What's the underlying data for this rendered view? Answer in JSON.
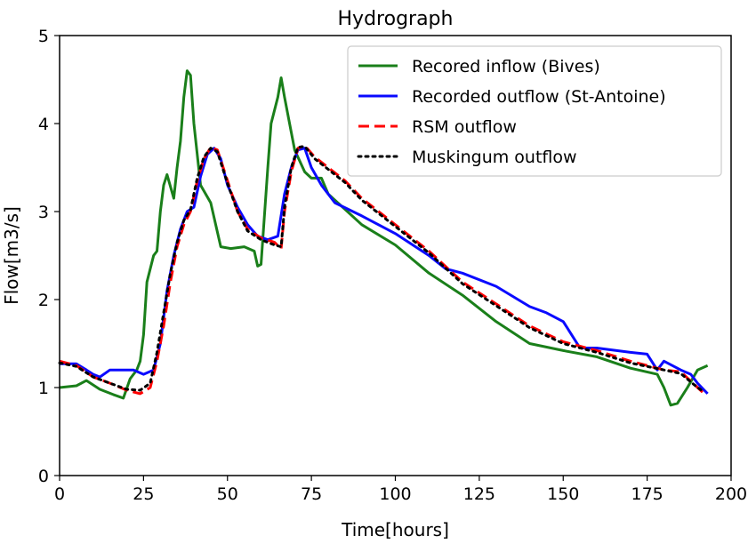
{
  "chart_data": {
    "type": "line",
    "title": "Hydrograph",
    "xlabel": "Time[hours]",
    "ylabel": "Flow[m3/s]",
    "xlim": [
      0,
      200
    ],
    "ylim": [
      0,
      5
    ],
    "xticks": [
      0,
      25,
      50,
      75,
      100,
      125,
      150,
      175,
      200
    ],
    "yticks": [
      0,
      1,
      2,
      3,
      4,
      5
    ],
    "grid": false,
    "legend_position": "top-right",
    "series": [
      {
        "name": "Recored inflow (Bives)",
        "color": "#1a7f1a",
        "style": "solid",
        "points": [
          [
            0,
            1.0
          ],
          [
            5,
            1.02
          ],
          [
            8,
            1.08
          ],
          [
            12,
            0.98
          ],
          [
            16,
            0.92
          ],
          [
            19,
            0.88
          ],
          [
            21,
            1.1
          ],
          [
            23,
            1.2
          ],
          [
            24,
            1.3
          ],
          [
            25,
            1.6
          ],
          [
            26,
            2.2
          ],
          [
            28,
            2.5
          ],
          [
            29,
            2.55
          ],
          [
            30,
            3.0
          ],
          [
            31,
            3.3
          ],
          [
            32,
            3.42
          ],
          [
            34,
            3.15
          ],
          [
            35,
            3.5
          ],
          [
            36,
            3.8
          ],
          [
            37,
            4.3
          ],
          [
            38,
            4.6
          ],
          [
            39,
            4.55
          ],
          [
            40,
            4.0
          ],
          [
            42,
            3.3
          ],
          [
            45,
            3.1
          ],
          [
            48,
            2.6
          ],
          [
            51,
            2.58
          ],
          [
            55,
            2.6
          ],
          [
            58,
            2.55
          ],
          [
            59,
            2.38
          ],
          [
            60,
            2.4
          ],
          [
            62,
            3.5
          ],
          [
            63,
            4.0
          ],
          [
            65,
            4.3
          ],
          [
            66,
            4.52
          ],
          [
            67,
            4.3
          ],
          [
            70,
            3.7
          ],
          [
            73,
            3.45
          ],
          [
            75,
            3.38
          ],
          [
            78,
            3.38
          ],
          [
            80,
            3.2
          ],
          [
            90,
            2.85
          ],
          [
            100,
            2.62
          ],
          [
            110,
            2.3
          ],
          [
            120,
            2.05
          ],
          [
            125,
            1.9
          ],
          [
            130,
            1.75
          ],
          [
            140,
            1.5
          ],
          [
            150,
            1.42
          ],
          [
            160,
            1.35
          ],
          [
            170,
            1.22
          ],
          [
            178,
            1.15
          ],
          [
            180,
            1.0
          ],
          [
            182,
            0.8
          ],
          [
            184,
            0.82
          ],
          [
            187,
            1.0
          ],
          [
            190,
            1.2
          ],
          [
            193,
            1.25
          ]
        ]
      },
      {
        "name": "Recorded outflow (St-Antoine)",
        "color": "#0a0aff",
        "style": "solid",
        "points": [
          [
            0,
            1.27
          ],
          [
            5,
            1.27
          ],
          [
            8,
            1.2
          ],
          [
            10,
            1.15
          ],
          [
            12,
            1.12
          ],
          [
            15,
            1.2
          ],
          [
            19,
            1.2
          ],
          [
            22,
            1.2
          ],
          [
            25,
            1.15
          ],
          [
            28,
            1.2
          ],
          [
            30,
            1.5
          ],
          [
            32,
            2.1
          ],
          [
            34,
            2.5
          ],
          [
            36,
            2.8
          ],
          [
            38,
            3.0
          ],
          [
            40,
            3.05
          ],
          [
            42,
            3.4
          ],
          [
            44,
            3.65
          ],
          [
            46,
            3.72
          ],
          [
            48,
            3.6
          ],
          [
            50,
            3.3
          ],
          [
            53,
            3.05
          ],
          [
            56,
            2.85
          ],
          [
            59,
            2.72
          ],
          [
            62,
            2.68
          ],
          [
            65,
            2.72
          ],
          [
            67,
            3.2
          ],
          [
            69,
            3.5
          ],
          [
            71,
            3.7
          ],
          [
            73,
            3.72
          ],
          [
            75,
            3.5
          ],
          [
            78,
            3.3
          ],
          [
            82,
            3.1
          ],
          [
            90,
            2.95
          ],
          [
            100,
            2.75
          ],
          [
            110,
            2.5
          ],
          [
            115,
            2.35
          ],
          [
            120,
            2.3
          ],
          [
            130,
            2.15
          ],
          [
            140,
            1.92
          ],
          [
            145,
            1.85
          ],
          [
            150,
            1.75
          ],
          [
            155,
            1.45
          ],
          [
            160,
            1.45
          ],
          [
            170,
            1.4
          ],
          [
            175,
            1.38
          ],
          [
            178,
            1.2
          ],
          [
            180,
            1.3
          ],
          [
            185,
            1.2
          ],
          [
            188,
            1.15
          ],
          [
            190,
            1.05
          ],
          [
            193,
            0.93
          ]
        ]
      },
      {
        "name": "RSM outflow",
        "color": "#ff0000",
        "style": "dashed",
        "points": [
          [
            0,
            1.3
          ],
          [
            5,
            1.25
          ],
          [
            10,
            1.12
          ],
          [
            15,
            1.05
          ],
          [
            20,
            0.97
          ],
          [
            24,
            0.93
          ],
          [
            27,
            1.0
          ],
          [
            29,
            1.3
          ],
          [
            31,
            1.7
          ],
          [
            33,
            2.2
          ],
          [
            35,
            2.6
          ],
          [
            37,
            2.85
          ],
          [
            39,
            3.0
          ],
          [
            41,
            3.35
          ],
          [
            43,
            3.6
          ],
          [
            45,
            3.73
          ],
          [
            47,
            3.7
          ],
          [
            50,
            3.35
          ],
          [
            53,
            3.0
          ],
          [
            56,
            2.8
          ],
          [
            60,
            2.7
          ],
          [
            64,
            2.65
          ],
          [
            66,
            2.58
          ],
          [
            67,
            3.0
          ],
          [
            69,
            3.45
          ],
          [
            71,
            3.72
          ],
          [
            73,
            3.75
          ],
          [
            76,
            3.62
          ],
          [
            80,
            3.5
          ],
          [
            85,
            3.35
          ],
          [
            90,
            3.15
          ],
          [
            100,
            2.85
          ],
          [
            110,
            2.55
          ],
          [
            120,
            2.2
          ],
          [
            130,
            1.95
          ],
          [
            140,
            1.7
          ],
          [
            150,
            1.52
          ],
          [
            160,
            1.42
          ],
          [
            170,
            1.3
          ],
          [
            180,
            1.2
          ],
          [
            185,
            1.18
          ],
          [
            190,
            1.0
          ],
          [
            192,
            0.93
          ]
        ]
      },
      {
        "name": "Muskingum outflow",
        "color": "#000000",
        "style": "dotted",
        "points": [
          [
            0,
            1.28
          ],
          [
            5,
            1.24
          ],
          [
            10,
            1.12
          ],
          [
            15,
            1.05
          ],
          [
            20,
            0.98
          ],
          [
            24,
            0.97
          ],
          [
            27,
            1.05
          ],
          [
            29,
            1.4
          ],
          [
            31,
            1.85
          ],
          [
            33,
            2.3
          ],
          [
            35,
            2.65
          ],
          [
            37,
            2.9
          ],
          [
            39,
            3.02
          ],
          [
            41,
            3.38
          ],
          [
            43,
            3.62
          ],
          [
            45,
            3.72
          ],
          [
            47,
            3.68
          ],
          [
            50,
            3.32
          ],
          [
            53,
            3.0
          ],
          [
            56,
            2.78
          ],
          [
            60,
            2.68
          ],
          [
            64,
            2.62
          ],
          [
            66,
            2.6
          ],
          [
            67,
            3.05
          ],
          [
            69,
            3.5
          ],
          [
            71,
            3.73
          ],
          [
            73,
            3.74
          ],
          [
            76,
            3.6
          ],
          [
            80,
            3.48
          ],
          [
            85,
            3.33
          ],
          [
            90,
            3.13
          ],
          [
            100,
            2.83
          ],
          [
            110,
            2.53
          ],
          [
            120,
            2.18
          ],
          [
            130,
            1.93
          ],
          [
            140,
            1.68
          ],
          [
            150,
            1.5
          ],
          [
            160,
            1.4
          ],
          [
            170,
            1.28
          ],
          [
            180,
            1.2
          ],
          [
            185,
            1.16
          ],
          [
            190,
            1.0
          ],
          [
            192,
            0.95
          ]
        ]
      }
    ]
  }
}
